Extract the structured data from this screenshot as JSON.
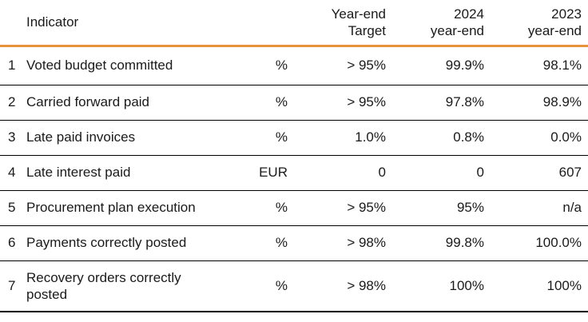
{
  "table": {
    "headers": {
      "indicator": "Indicator",
      "target_line1": "Year-end",
      "target_line2": "Target",
      "y2024_line1": "2024",
      "y2024_line2": "year-end",
      "y2023_line1": "2023",
      "y2023_line2": "year-end"
    },
    "rows": [
      {
        "num": "1",
        "indicator": "Voted budget committed",
        "unit": "%",
        "target": "> 95%",
        "y2024": "99.9%",
        "y2023": "98.1%"
      },
      {
        "num": "2",
        "indicator": "Carried forward paid",
        "unit": "%",
        "target": "> 95%",
        "y2024": "97.8%",
        "y2023": "98.9%"
      },
      {
        "num": "3",
        "indicator": "Late paid invoices",
        "unit": "%",
        "target": "1.0%",
        "y2024": "0.8%",
        "y2023": "0.0%"
      },
      {
        "num": "4",
        "indicator": "Late interest paid",
        "unit": "EUR",
        "target": "0",
        "y2024": "0",
        "y2023": "607"
      },
      {
        "num": "5",
        "indicator": "Procurement plan execution",
        "unit": "%",
        "target": "> 95%",
        "y2024": "95%",
        "y2023": "n/a"
      },
      {
        "num": "6",
        "indicator": "Payments correctly posted",
        "unit": "%",
        "target": "> 98%",
        "y2024": "99.8%",
        "y2023": "100.0%"
      },
      {
        "num": "7",
        "indicator": "Recovery orders correctly posted",
        "unit": "%",
        "target": "> 98%",
        "y2024": "100%",
        "y2023": "100%"
      }
    ]
  },
  "colors": {
    "accent_orange": "#e8923d",
    "divider_black": "#000000",
    "text": "#1a1a1a",
    "background": "#ffffff"
  }
}
